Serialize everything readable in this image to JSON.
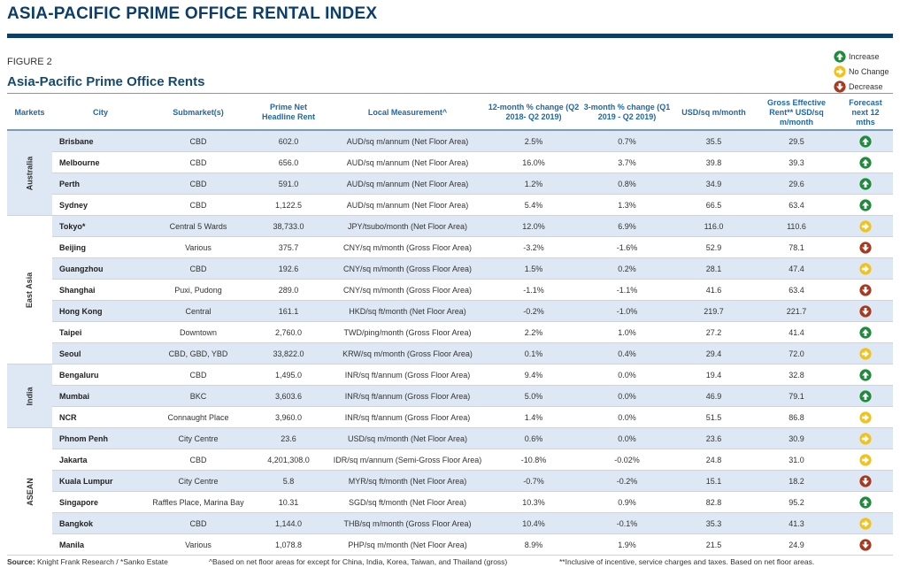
{
  "header": {
    "title": "ASIA-PACIFIC PRIME OFFICE RENTAL INDEX",
    "figure_label": "FIGURE 2",
    "subtitle": "Asia-Pacific Prime Office Rents"
  },
  "legend": [
    {
      "label": "Increase",
      "icon": "arrow-up-icon",
      "color": "#1e8a3a"
    },
    {
      "label": "No Change",
      "icon": "arrow-right-icon",
      "color": "#f2c21b"
    },
    {
      "label": "Decrease",
      "icon": "arrow-down-icon",
      "color": "#a8391f"
    }
  ],
  "colors": {
    "brand_navy": "#0d3d6b",
    "header_text": "#2067a6",
    "row_shade": "#dde8f4",
    "increase": "#1e8a3a",
    "no_change": "#f2c21b",
    "decrease": "#a8391f"
  },
  "columns": [
    "Markets",
    "City",
    "Submarket(s)",
    "Prime Net Headline Rent",
    "Local Measurement^",
    "12-month % change (Q2 2018- Q2 2019)",
    "3-month % change (Q1 2019 - Q2 2019)",
    "USD/sq m/month",
    "Gross Effective Rent** USD/sq m/month",
    "Forecast next 12 mths"
  ],
  "markets": [
    {
      "name": "Australia",
      "rows": [
        {
          "city": "Brisbane",
          "sub": "CBD",
          "rent": "602.0",
          "measure": "AUD/sq m/annum (Net Floor Area)",
          "m12": "2.5%",
          "m3": "0.7%",
          "usd": "35.5",
          "gross": "29.5",
          "forecast": "increase"
        },
        {
          "city": "Melbourne",
          "sub": "CBD",
          "rent": "656.0",
          "measure": "AUD/sq m/annum (Net Floor Area)",
          "m12": "16.0%",
          "m3": "3.7%",
          "usd": "39.8",
          "gross": "39.3",
          "forecast": "increase"
        },
        {
          "city": "Perth",
          "sub": "CBD",
          "rent": "591.0",
          "measure": "AUD/sq m/annum (Net Floor Area)",
          "m12": "1.2%",
          "m3": "0.8%",
          "usd": "34.9",
          "gross": "29.6",
          "forecast": "increase"
        },
        {
          "city": "Sydney",
          "sub": "CBD",
          "rent": "1,122.5",
          "measure": "AUD/sq m/annum (Net Floor Area)",
          "m12": "5.4%",
          "m3": "1.3%",
          "usd": "66.5",
          "gross": "63.4",
          "forecast": "increase"
        }
      ]
    },
    {
      "name": "East Asia",
      "rows": [
        {
          "city": "Tokyo*",
          "sub": "Central 5 Wards",
          "rent": "38,733.0",
          "measure": "JPY/tsubo/month (Net Floor Area)",
          "m12": "12.0%",
          "m3": "6.9%",
          "usd": "116.0",
          "gross": "110.6",
          "forecast": "no-change"
        },
        {
          "city": "Beijing",
          "sub": "Various",
          "rent": "375.7",
          "measure": "CNY/sq m/month (Gross Floor Area)",
          "m12": "-3.2%",
          "m3": "-1.6%",
          "usd": "52.9",
          "gross": "78.1",
          "forecast": "decrease"
        },
        {
          "city": "Guangzhou",
          "sub": "CBD",
          "rent": "192.6",
          "measure": "CNY/sq m/month (Gross Floor Area)",
          "m12": "1.5%",
          "m3": "0.2%",
          "usd": "28.1",
          "gross": "47.4",
          "forecast": "no-change"
        },
        {
          "city": "Shanghai",
          "sub": "Puxi, Pudong",
          "rent": "289.0",
          "measure": "CNY/sq m/month (Gross Floor Area)",
          "m12": "-1.1%",
          "m3": "-1.1%",
          "usd": "41.6",
          "gross": "63.4",
          "forecast": "decrease"
        },
        {
          "city": "Hong Kong",
          "sub": "Central",
          "rent": "161.1",
          "measure": "HKD/sq ft/month (Net Floor Area)",
          "m12": "-0.2%",
          "m3": "-1.0%",
          "usd": "219.7",
          "gross": "221.7",
          "forecast": "decrease"
        },
        {
          "city": "Taipei",
          "sub": "Downtown",
          "rent": "2,760.0",
          "measure": "TWD/ping/month (Gross Floor Area)",
          "m12": "2.2%",
          "m3": "1.0%",
          "usd": "27.2",
          "gross": "41.4",
          "forecast": "increase"
        },
        {
          "city": "Seoul",
          "sub": "CBD, GBD, YBD",
          "rent": "33,822.0",
          "measure": "KRW/sq m/month (Gross Floor Area)",
          "m12": "0.1%",
          "m3": "0.4%",
          "usd": "29.4",
          "gross": "72.0",
          "forecast": "no-change"
        }
      ]
    },
    {
      "name": "India",
      "rows": [
        {
          "city": "Bengaluru",
          "sub": "CBD",
          "rent": "1,495.0",
          "measure": "INR/sq ft/annum (Gross Floor Area)",
          "m12": "9.4%",
          "m3": "0.0%",
          "usd": "19.4",
          "gross": "32.8",
          "forecast": "increase"
        },
        {
          "city": "Mumbai",
          "sub": "BKC",
          "rent": "3,603.6",
          "measure": "INR/sq ft/annum (Gross Floor Area)",
          "m12": "5.0%",
          "m3": "0.0%",
          "usd": "46.9",
          "gross": "79.1",
          "forecast": "increase"
        },
        {
          "city": "NCR",
          "sub": "Connaught Place",
          "rent": "3,960.0",
          "measure": "INR/sq ft/annum (Gross Floor Area)",
          "m12": "1.4%",
          "m3": "0.0%",
          "usd": "51.5",
          "gross": "86.8",
          "forecast": "no-change"
        }
      ]
    },
    {
      "name": "ASEAN",
      "rows": [
        {
          "city": "Phnom Penh",
          "sub": "City Centre",
          "rent": "23.6",
          "measure": "USD/sq m/month (Net Floor Area)",
          "m12": "0.6%",
          "m3": "0.0%",
          "usd": "23.6",
          "gross": "30.9",
          "forecast": "no-change"
        },
        {
          "city": "Jakarta",
          "sub": "CBD",
          "rent": "4,201,308.0",
          "measure": "IDR/sq m/annum (Semi-Gross Floor Area)",
          "m12": "-10.8%",
          "m3": "-0.02%",
          "usd": "24.8",
          "gross": "31.0",
          "forecast": "no-change"
        },
        {
          "city": "Kuala Lumpur",
          "sub": "City Centre",
          "rent": "5.8",
          "measure": "MYR/sq ft/month (Net Floor Area)",
          "m12": "-0.7%",
          "m3": "-0.2%",
          "usd": "15.1",
          "gross": "18.2",
          "forecast": "decrease"
        },
        {
          "city": "Singapore",
          "sub": "Raffles Place, Marina Bay",
          "rent": "10.31",
          "measure": "SGD/sq ft/month (Net Floor Area)",
          "m12": "10.3%",
          "m3": "0.9%",
          "usd": "82.8",
          "gross": "95.2",
          "forecast": "increase"
        },
        {
          "city": "Bangkok",
          "sub": "CBD",
          "rent": "1,144.0",
          "measure": "THB/sq m/month (Gross Floor Area)",
          "m12": "10.4%",
          "m3": "-0.1%",
          "usd": "35.3",
          "gross": "41.3",
          "forecast": "no-change"
        },
        {
          "city": "Manila",
          "sub": "Various",
          "rent": "1,078.8",
          "measure": "PHP/sq m/month (Net Floor Area)",
          "m12": "8.9%",
          "m3": "1.9%",
          "usd": "21.5",
          "gross": "24.9",
          "forecast": "decrease"
        }
      ]
    }
  ],
  "footer": {
    "source_label": "Source:",
    "source_text": " Knight Frank Research / *Sanko Estate",
    "note1": "^Based on net floor areas for except for China, India, Korea, Taiwan, and Thailand (gross)",
    "note2": "**Inclusive of incentive, service charges and taxes. Based on net floor areas."
  }
}
